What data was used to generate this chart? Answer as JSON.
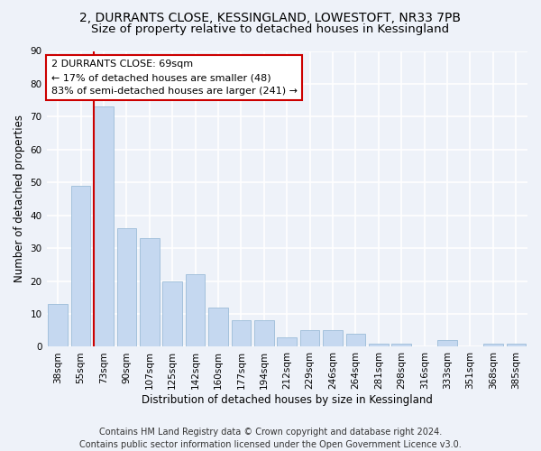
{
  "title1": "2, DURRANTS CLOSE, KESSINGLAND, LOWESTOFT, NR33 7PB",
  "title2": "Size of property relative to detached houses in Kessingland",
  "xlabel": "Distribution of detached houses by size in Kessingland",
  "ylabel": "Number of detached properties",
  "categories": [
    "38sqm",
    "55sqm",
    "73sqm",
    "90sqm",
    "107sqm",
    "125sqm",
    "142sqm",
    "160sqm",
    "177sqm",
    "194sqm",
    "212sqm",
    "229sqm",
    "246sqm",
    "264sqm",
    "281sqm",
    "298sqm",
    "316sqm",
    "333sqm",
    "351sqm",
    "368sqm",
    "385sqm"
  ],
  "values": [
    13,
    49,
    73,
    36,
    33,
    20,
    22,
    12,
    8,
    8,
    3,
    5,
    5,
    4,
    1,
    1,
    0,
    2,
    0,
    1,
    1
  ],
  "bar_color": "#c5d8f0",
  "bar_edge_color": "#9bbcd8",
  "vline_color": "#cc0000",
  "annotation_text": "2 DURRANTS CLOSE: 69sqm\n← 17% of detached houses are smaller (48)\n83% of semi-detached houses are larger (241) →",
  "annotation_box_color": "#ffffff",
  "annotation_box_edge": "#cc0000",
  "ylim": [
    0,
    90
  ],
  "yticks": [
    0,
    10,
    20,
    30,
    40,
    50,
    60,
    70,
    80,
    90
  ],
  "footer": "Contains HM Land Registry data © Crown copyright and database right 2024.\nContains public sector information licensed under the Open Government Licence v3.0.",
  "bg_color": "#eef2f9",
  "plot_bg_color": "#eef2f9",
  "grid_color": "#ffffff",
  "title1_fontsize": 10,
  "title2_fontsize": 9.5,
  "xlabel_fontsize": 8.5,
  "ylabel_fontsize": 8.5,
  "footer_fontsize": 7,
  "tick_fontsize": 7.5
}
